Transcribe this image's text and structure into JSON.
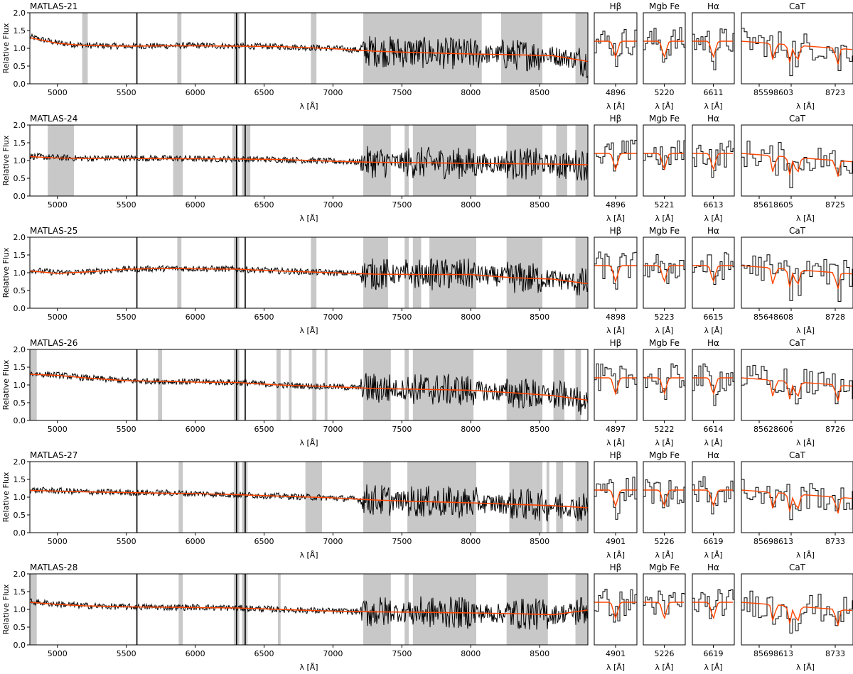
{
  "figure": {
    "ylabel": "Relative Flux",
    "ylim": [
      0,
      2.0
    ],
    "yticks": [
      "0.0",
      "0.5",
      "1.0",
      "1.5",
      "2.0"
    ],
    "main_xlim": [
      4800,
      8850
    ],
    "main_xticks": [
      5000,
      5500,
      6000,
      6500,
      7000,
      7500,
      8000,
      8500
    ],
    "xlabel": "λ [Å]",
    "colors": {
      "observed": "#000000",
      "model": "#ff4500",
      "mask": "#c8c8c8"
    }
  },
  "chart_data": [
    {
      "type": "line",
      "galaxy": "MATLAS-21",
      "series": [
        {
          "name": "observed",
          "x": [
            4800,
            5000,
            5200,
            5500,
            5800,
            6000,
            6300,
            6600,
            7000,
            7300,
            7600,
            8000,
            8300,
            8600,
            8850
          ],
          "y": [
            1.32,
            1.15,
            1.08,
            1.06,
            1.07,
            1.08,
            1.06,
            1.05,
            1.0,
            0.92,
            0.88,
            0.84,
            0.82,
            0.8,
            0.62
          ]
        },
        {
          "name": "model",
          "x": [
            4800,
            5000,
            5200,
            5500,
            5800,
            6000,
            6300,
            6600,
            7000,
            7300,
            7600,
            8000,
            8300,
            8600,
            8850
          ],
          "y": [
            1.3,
            1.14,
            1.08,
            1.06,
            1.07,
            1.07,
            1.06,
            1.05,
            0.99,
            0.92,
            0.88,
            0.84,
            0.82,
            0.79,
            0.63
          ]
        }
      ],
      "masks": [
        [
          5180,
          5220
        ],
        [
          5870,
          5900
        ],
        [
          6280,
          6320
        ],
        [
          6840,
          6880
        ],
        [
          7220,
          8080
        ],
        [
          8220,
          8520
        ],
        [
          8760,
          8850
        ]
      ],
      "panels": [
        {
          "label": "Hβ",
          "xtick": "4896"
        },
        {
          "label": "Mgb Fe",
          "xtick": "5220"
        },
        {
          "label": "Hα",
          "xtick": "6611"
        },
        {
          "label": "CaT",
          "xtick_left": "85598603",
          "xtick_right": "8723"
        }
      ]
    },
    {
      "type": "line",
      "galaxy": "MATLAS-24",
      "series": [
        {
          "name": "observed",
          "x": [
            4800,
            5000,
            5200,
            5500,
            5800,
            6000,
            6300,
            6600,
            7000,
            7300,
            7600,
            8000,
            8300,
            8600,
            8850
          ],
          "y": [
            1.12,
            1.08,
            1.06,
            1.07,
            1.06,
            1.05,
            1.04,
            1.03,
            0.98,
            0.95,
            0.94,
            0.92,
            0.91,
            0.9,
            0.88
          ]
        },
        {
          "name": "model",
          "x": [
            4800,
            5000,
            5200,
            5500,
            5800,
            6000,
            6300,
            6600,
            7000,
            7300,
            7600,
            8000,
            8300,
            8600,
            8850
          ],
          "y": [
            1.11,
            1.07,
            1.06,
            1.06,
            1.05,
            1.05,
            1.04,
            1.03,
            0.98,
            0.95,
            0.94,
            0.92,
            0.91,
            0.9,
            0.88
          ]
        }
      ],
      "masks": [
        [
          4930,
          5120
        ],
        [
          5840,
          5910
        ],
        [
          6270,
          6310
        ],
        [
          6340,
          6400
        ],
        [
          7220,
          7420
        ],
        [
          7520,
          7550
        ],
        [
          7580,
          8040
        ],
        [
          8260,
          8520
        ],
        [
          8620,
          8700
        ],
        [
          8760,
          8850
        ]
      ],
      "panels": [
        {
          "label": "Hβ",
          "xtick": "4896"
        },
        {
          "label": "Mgb Fe",
          "xtick": "5221"
        },
        {
          "label": "Hα",
          "xtick": "6613"
        },
        {
          "label": "CaT",
          "xtick_left": "85618605",
          "xtick_right": "8725"
        }
      ]
    },
    {
      "type": "line",
      "galaxy": "MATLAS-25",
      "series": [
        {
          "name": "observed",
          "x": [
            4800,
            5000,
            5200,
            5500,
            5800,
            6000,
            6300,
            6600,
            7000,
            7300,
            7600,
            8000,
            8300,
            8600,
            8850
          ],
          "y": [
            1.08,
            1.0,
            1.02,
            1.1,
            1.12,
            1.12,
            1.1,
            1.05,
            1.0,
            0.96,
            0.95,
            0.95,
            0.86,
            0.82,
            0.68
          ]
        },
        {
          "name": "model",
          "x": [
            4800,
            5000,
            5200,
            5500,
            5800,
            6000,
            6300,
            6600,
            7000,
            7300,
            7600,
            8000,
            8300,
            8600,
            8850
          ],
          "y": [
            1.05,
            0.98,
            1.02,
            1.1,
            1.12,
            1.11,
            1.1,
            1.05,
            1.0,
            0.96,
            0.95,
            0.95,
            0.86,
            0.82,
            0.69
          ]
        }
      ],
      "masks": [
        [
          5870,
          5900
        ],
        [
          6280,
          6320
        ],
        [
          6840,
          6880
        ],
        [
          7220,
          7400
        ],
        [
          7520,
          7550
        ],
        [
          7580,
          7640
        ],
        [
          7700,
          8040
        ],
        [
          8260,
          8520
        ],
        [
          8760,
          8850
        ]
      ],
      "panels": [
        {
          "label": "Hβ",
          "xtick": "4898"
        },
        {
          "label": "Mgb Fe",
          "xtick": "5223"
        },
        {
          "label": "Hα",
          "xtick": "6615"
        },
        {
          "label": "CaT",
          "xtick_left": "85648608",
          "xtick_right": "8728"
        }
      ]
    },
    {
      "type": "line",
      "galaxy": "MATLAS-26",
      "series": [
        {
          "name": "observed",
          "x": [
            4800,
            5000,
            5200,
            5500,
            5800,
            6000,
            6300,
            6600,
            7000,
            7300,
            7600,
            8000,
            8300,
            8600,
            8850
          ],
          "y": [
            1.32,
            1.28,
            1.2,
            1.12,
            1.1,
            1.09,
            1.07,
            1.0,
            0.95,
            0.9,
            0.88,
            0.85,
            0.78,
            0.7,
            0.58
          ]
        },
        {
          "name": "model",
          "x": [
            4800,
            5000,
            5200,
            5500,
            5800,
            6000,
            6300,
            6600,
            7000,
            7300,
            7600,
            8000,
            8300,
            8600,
            8850
          ],
          "y": [
            1.3,
            1.27,
            1.2,
            1.12,
            1.1,
            1.08,
            1.07,
            1.0,
            0.95,
            0.9,
            0.88,
            0.85,
            0.78,
            0.7,
            0.57
          ]
        }
      ],
      "masks": [
        [
          4800,
          4850
        ],
        [
          5730,
          5760
        ],
        [
          6280,
          6320
        ],
        [
          6590,
          6620
        ],
        [
          6680,
          6700
        ],
        [
          6850,
          6880
        ],
        [
          6940,
          6960
        ],
        [
          7220,
          7420
        ],
        [
          7520,
          7550
        ],
        [
          7580,
          8020
        ],
        [
          8260,
          8520
        ],
        [
          8600,
          8680
        ],
        [
          8760,
          8800
        ]
      ],
      "panels": [
        {
          "label": "Hβ",
          "xtick": "4897"
        },
        {
          "label": "Mgb Fe",
          "xtick": "5222"
        },
        {
          "label": "Hα",
          "xtick": "6614"
        },
        {
          "label": "CaT",
          "xtick_left": "85628606",
          "xtick_right": "8726"
        }
      ]
    },
    {
      "type": "line",
      "galaxy": "MATLAS-27",
      "series": [
        {
          "name": "observed",
          "x": [
            4800,
            5000,
            5200,
            5500,
            5800,
            6000,
            6300,
            6600,
            7000,
            7300,
            7600,
            8000,
            8300,
            8600,
            8850
          ],
          "y": [
            1.2,
            1.18,
            1.15,
            1.13,
            1.12,
            1.1,
            1.07,
            1.03,
            0.98,
            0.92,
            0.88,
            0.84,
            0.8,
            0.76,
            0.7
          ]
        },
        {
          "name": "model",
          "x": [
            4800,
            5000,
            5200,
            5500,
            5800,
            6000,
            6300,
            6600,
            7000,
            7300,
            7600,
            8000,
            8300,
            8600,
            8850
          ],
          "y": [
            1.19,
            1.17,
            1.15,
            1.13,
            1.11,
            1.1,
            1.07,
            1.03,
            0.98,
            0.92,
            0.88,
            0.84,
            0.8,
            0.76,
            0.7
          ]
        }
      ],
      "masks": [
        [
          5880,
          5910
        ],
        [
          6280,
          6320
        ],
        [
          6340,
          6380
        ],
        [
          6800,
          6920
        ],
        [
          7220,
          7420
        ],
        [
          7540,
          8040
        ],
        [
          8280,
          8520
        ],
        [
          8550,
          8570
        ],
        [
          8620,
          8670
        ],
        [
          8760,
          8850
        ]
      ],
      "panels": [
        {
          "label": "Hβ",
          "xtick": "4901"
        },
        {
          "label": "Mgb Fe",
          "xtick": "5226"
        },
        {
          "label": "Hα",
          "xtick": "6619"
        },
        {
          "label": "CaT",
          "xtick_left": "85698613",
          "xtick_right": "8733"
        }
      ]
    },
    {
      "type": "line",
      "galaxy": "MATLAS-28",
      "series": [
        {
          "name": "observed",
          "x": [
            4800,
            5000,
            5200,
            5500,
            5800,
            6000,
            6300,
            6600,
            7000,
            7300,
            7600,
            8000,
            8300,
            8600,
            8850
          ],
          "y": [
            1.22,
            1.15,
            1.1,
            1.07,
            1.06,
            1.06,
            1.04,
            1.0,
            0.95,
            0.93,
            0.92,
            0.9,
            0.88,
            0.85,
            1.0
          ]
        },
        {
          "name": "model",
          "x": [
            4800,
            5000,
            5200,
            5500,
            5800,
            6000,
            6300,
            6600,
            7000,
            7300,
            7600,
            8000,
            8300,
            8600,
            8850
          ],
          "y": [
            1.2,
            1.14,
            1.1,
            1.07,
            1.06,
            1.05,
            1.04,
            1.0,
            0.95,
            0.93,
            0.92,
            0.9,
            0.88,
            0.85,
            0.98
          ]
        }
      ],
      "masks": [
        [
          4800,
          4850
        ],
        [
          5880,
          5910
        ],
        [
          6280,
          6320
        ],
        [
          6340,
          6380
        ],
        [
          6600,
          6620
        ],
        [
          7220,
          7420
        ],
        [
          7520,
          7550
        ],
        [
          7580,
          8040
        ],
        [
          8260,
          8560
        ],
        [
          8760,
          8850
        ]
      ],
      "panels": [
        {
          "label": "Hβ",
          "xtick": "4901"
        },
        {
          "label": "Mgb Fe",
          "xtick": "5226"
        },
        {
          "label": "Hα",
          "xtick": "6619"
        },
        {
          "label": "CaT",
          "xtick_left": "85698613",
          "xtick_right": "8733"
        }
      ]
    }
  ]
}
